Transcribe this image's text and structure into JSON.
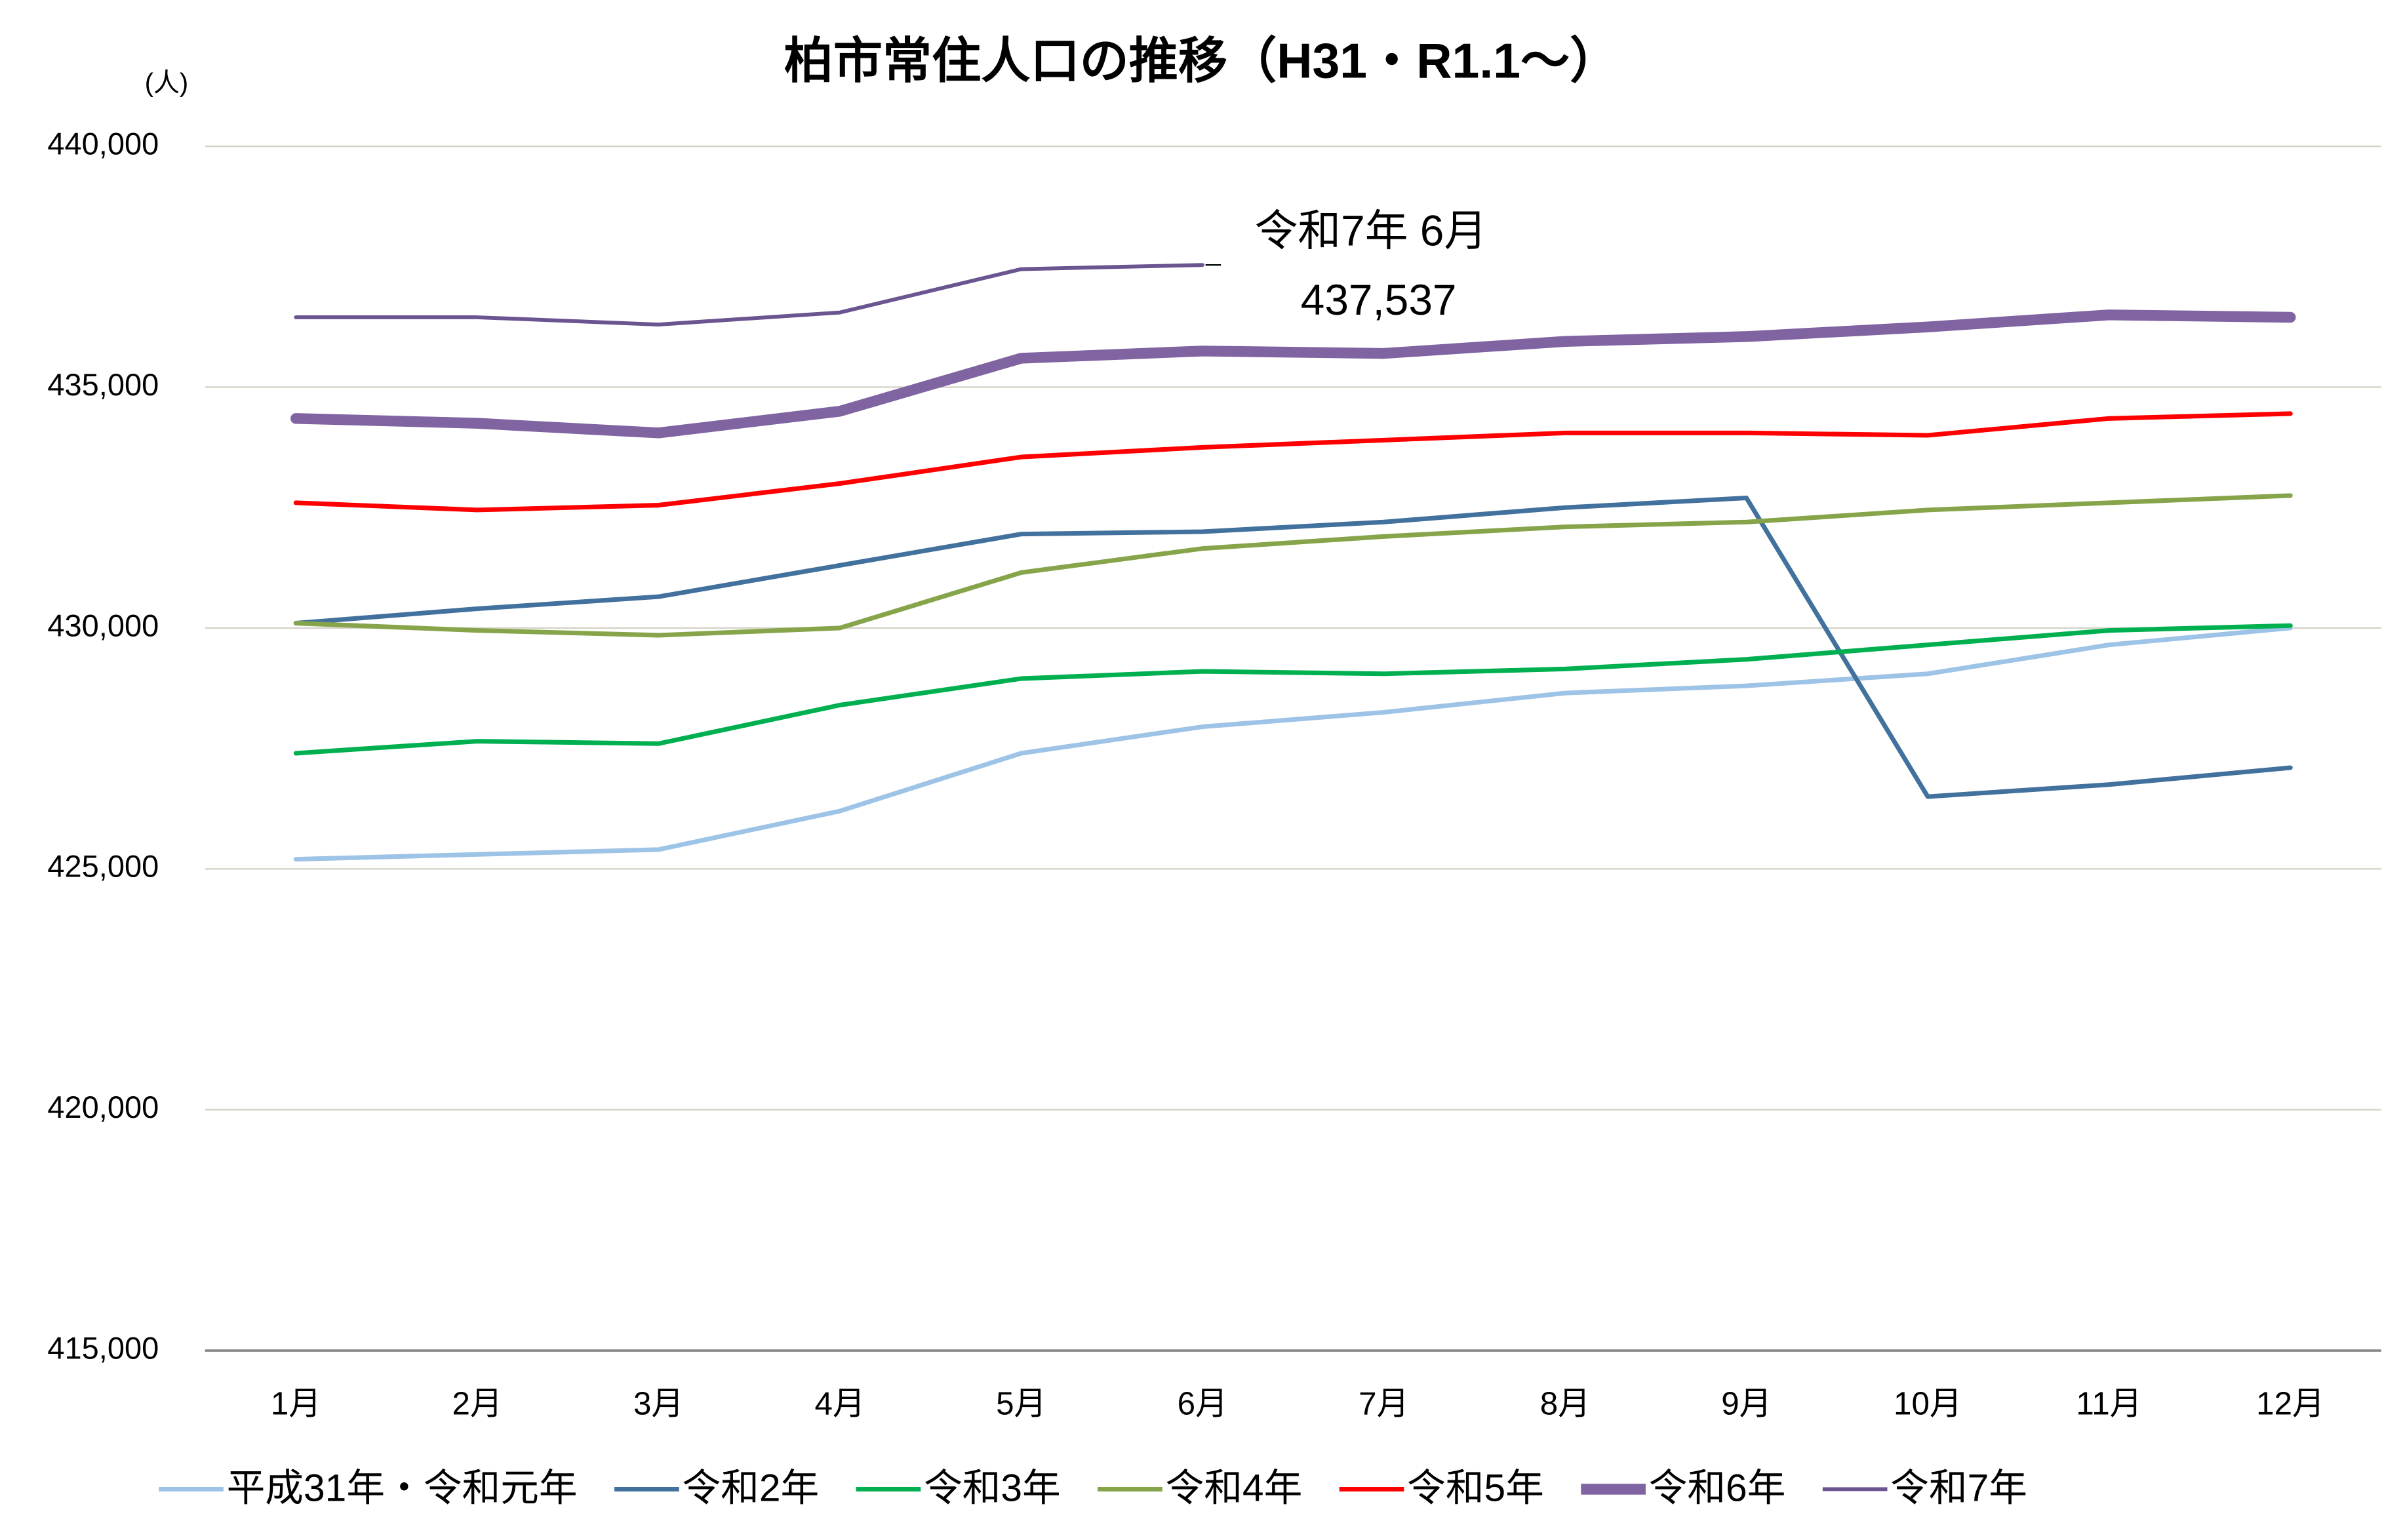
{
  "chart_data": {
    "type": "line",
    "title": "柏市常住人口の推移（H31・R1.1～）",
    "y_label": "(人)",
    "categories": [
      "1月",
      "2月",
      "3月",
      "4月",
      "5月",
      "6月",
      "7月",
      "8月",
      "9月",
      "10月",
      "11月",
      "12月"
    ],
    "ylim": [
      415000,
      440000
    ],
    "yticks": [
      {
        "value": 415000,
        "label": "415,000"
      },
      {
        "value": 420000,
        "label": "420,000"
      },
      {
        "value": 425000,
        "label": "425,000"
      },
      {
        "value": 430000,
        "label": "430,000"
      },
      {
        "value": 435000,
        "label": "435,000"
      },
      {
        "value": 440000,
        "label": "440,000"
      }
    ],
    "grid": true,
    "legend": "bottom",
    "annotation": "令和7年 6月",
    "series": [
      {
        "name": "平成31年・令和元年",
        "color": "#9DC3E6",
        "line_width": 3,
        "values": [
          425200,
          425300,
          425400,
          426200,
          427400,
          427950,
          428250,
          428650,
          428800,
          429050,
          429650,
          430000
        ]
      },
      {
        "name": "令和2年",
        "color": "#41719C",
        "line_width": 3,
        "values": [
          430100,
          430400,
          430650,
          431300,
          431950,
          432000,
          432200,
          432500,
          432700,
          426500,
          426750,
          427100
        ]
      },
      {
        "name": "令和3年",
        "color": "#00B050",
        "line_width": 3,
        "values": [
          427400,
          427650,
          427600,
          428400,
          428950,
          429100,
          429050,
          429150,
          429350,
          429650,
          429950,
          430050
        ]
      },
      {
        "name": "令和4年",
        "color": "#86A44A",
        "line_width": 3,
        "values": [
          430100,
          429950,
          429850,
          430000,
          431150,
          431650,
          431900,
          432100,
          432200,
          432450,
          432600,
          432750
        ]
      },
      {
        "name": "令和5年",
        "color": "#FF0000",
        "line_width": 3,
        "values": [
          432600,
          432450,
          432550,
          433000,
          433550,
          433750,
          433900,
          434050,
          434050,
          434000,
          434350,
          434450
        ]
      },
      {
        "name": "令和6年",
        "color": "#8064A2",
        "line_width": 7,
        "values": [
          434350,
          434250,
          434050,
          434500,
          435600,
          435750,
          435700,
          435950,
          436050,
          436250,
          436500,
          436450
        ]
      },
      {
        "name": "令和7年",
        "color": "#6B5590",
        "line_width": 2.5,
        "values": [
          436450,
          436450,
          436300,
          436550,
          437450,
          437537,
          null,
          null,
          null,
          null,
          null,
          null
        ],
        "value_labels": [
          null,
          null,
          null,
          null,
          null,
          "437,537",
          null,
          null,
          null,
          null,
          null,
          null
        ]
      }
    ]
  }
}
